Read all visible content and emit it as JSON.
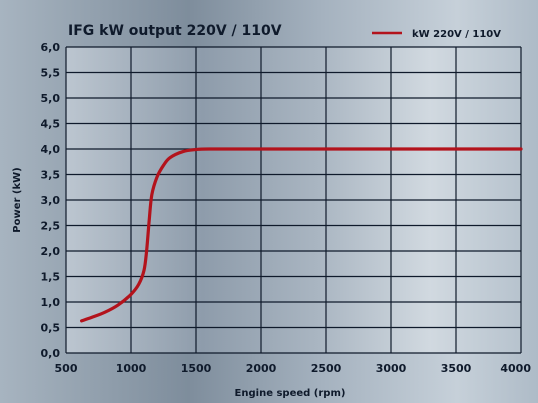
{
  "chart_data": {
    "type": "line",
    "title": "IFG kW output 220V / 110V",
    "xlabel": "Engine speed (rpm)",
    "ylabel": "Power (kW)",
    "xlim": [
      500,
      4000
    ],
    "ylim": [
      0.0,
      6.0
    ],
    "x_ticks": [
      "500",
      "1000",
      "1500",
      "2000",
      "2500",
      "3000",
      "3500",
      "4000"
    ],
    "y_ticks": [
      "0,0",
      "0,5",
      "1,0",
      "1,5",
      "2,0",
      "2,5",
      "3,0",
      "3,5",
      "4,0",
      "4,5",
      "5,0",
      "5,5",
      "6,0"
    ],
    "grid": true,
    "legend_position": "top-right",
    "series": [
      {
        "name": "kW 220V / 110V",
        "color": "#b3131c",
        "points": [
          [
            620,
            0.63
          ],
          [
            700,
            0.7
          ],
          [
            800,
            0.8
          ],
          [
            900,
            0.94
          ],
          [
            1000,
            1.15
          ],
          [
            1060,
            1.35
          ],
          [
            1100,
            1.62
          ],
          [
            1120,
            2.0
          ],
          [
            1140,
            2.6
          ],
          [
            1160,
            3.1
          ],
          [
            1200,
            3.45
          ],
          [
            1250,
            3.68
          ],
          [
            1300,
            3.83
          ],
          [
            1400,
            3.95
          ],
          [
            1500,
            3.99
          ],
          [
            1600,
            4.0
          ],
          [
            2000,
            4.0
          ],
          [
            2500,
            4.0
          ],
          [
            3000,
            4.0
          ],
          [
            3500,
            4.0
          ],
          [
            4000,
            4.0
          ]
        ]
      }
    ]
  }
}
